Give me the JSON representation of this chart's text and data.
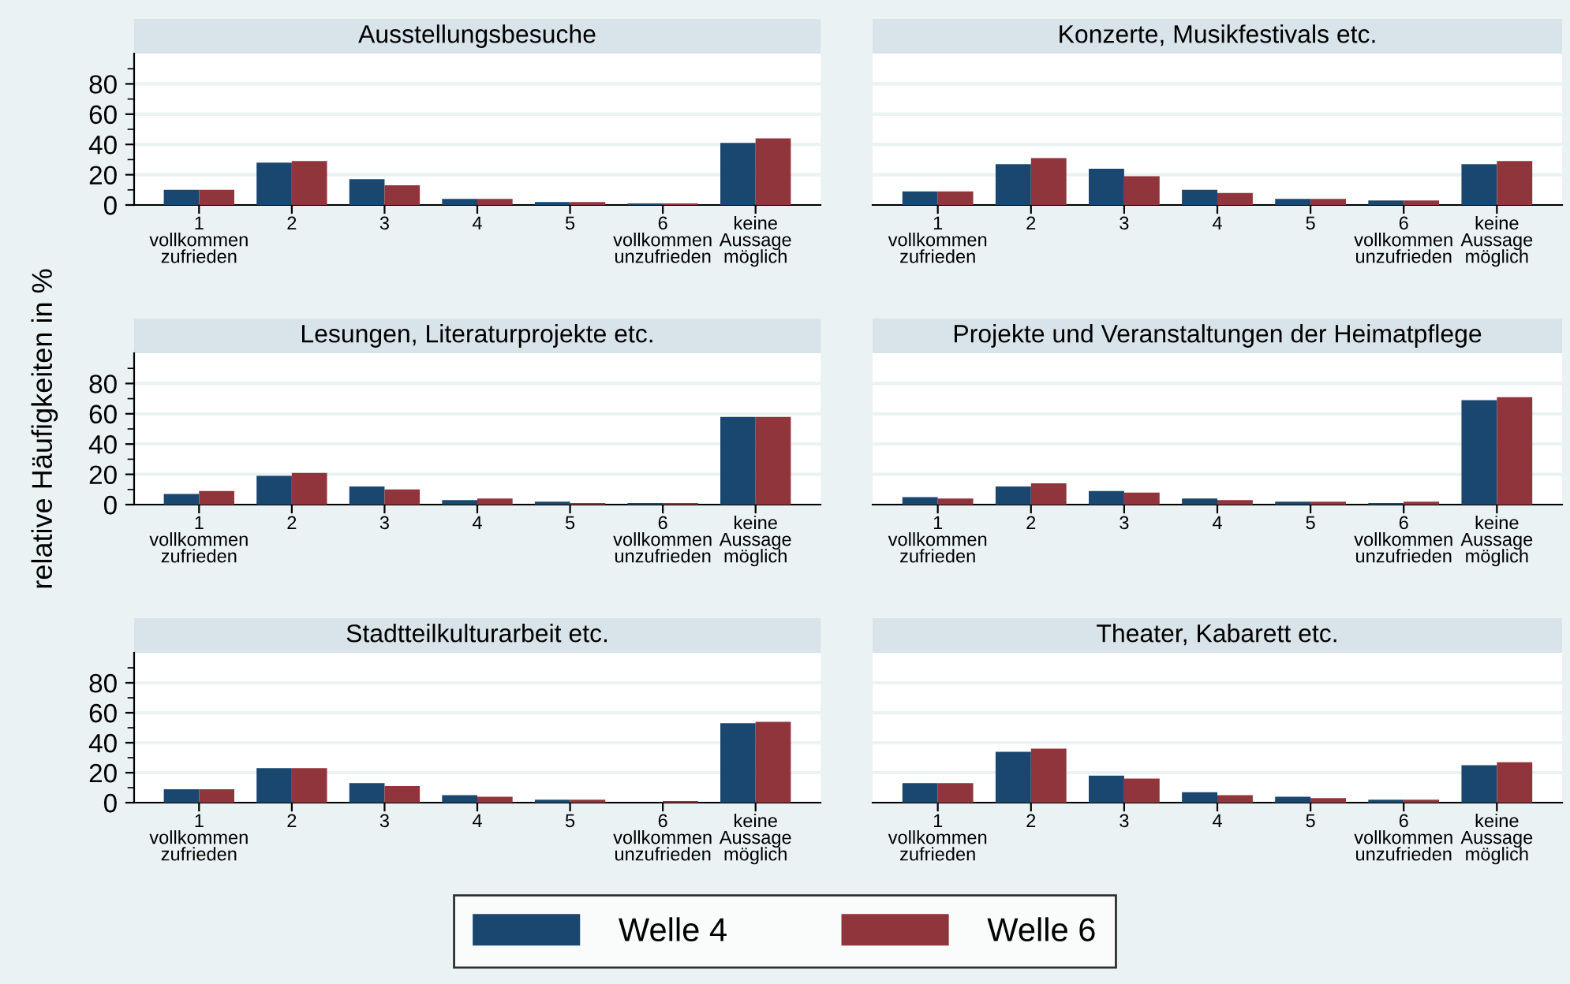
{
  "chart_data": [
    {
      "type": "bar",
      "title": "Ausstellungsbesuche",
      "categories": [
        "1\nvollkommen\nzufrieden",
        "2",
        "3",
        "4",
        "5",
        "6\nvollkommen\nunzufrieden",
        "keine\nAussage\nmöglich"
      ],
      "ylim": [
        0,
        100
      ],
      "yticks": [
        0,
        20,
        40,
        60,
        80
      ],
      "grid": "y",
      "legend": "bottom",
      "series": [
        {
          "name": "Welle 4",
          "color": "#1a476f",
          "values": [
            10,
            28,
            17,
            4,
            2,
            1,
            41
          ]
        },
        {
          "name": "Welle 6",
          "color": "#90353b",
          "values": [
            10,
            29,
            13,
            4,
            2,
            1,
            44
          ]
        }
      ]
    },
    {
      "type": "bar",
      "title": "Konzerte, Musikfestivals etc.",
      "categories": [
        "1\nvollkommen\nzufrieden",
        "2",
        "3",
        "4",
        "5",
        "6\nvollkommen\nunzufrieden",
        "keine\nAussage\nmöglich"
      ],
      "ylim": [
        0,
        100
      ],
      "yticks": [
        0,
        20,
        40,
        60,
        80
      ],
      "grid": "y",
      "tick_labels": "x",
      "series": [
        {
          "color": "#1a476f",
          "values": [
            9,
            27,
            24,
            10,
            4,
            3,
            27
          ]
        },
        {
          "color": "#90353b",
          "values": [
            9,
            31,
            19,
            8,
            4,
            3,
            29
          ]
        }
      ]
    },
    {
      "type": "bar",
      "title": "Lesungen, Literaturprojekte etc.",
      "ylabel": "relative Häufigkeiten in %",
      "categories": [
        "1\nvollkommen\nzufrieden",
        "2",
        "3",
        "4",
        "5",
        "6\nvollkommen\nunzufrieden",
        "keine\nAussage\nmöglich"
      ],
      "ylim": [
        0,
        100
      ],
      "yticks": [
        0,
        20,
        40,
        60,
        80
      ],
      "grid": "y",
      "series": [
        {
          "color": "#1a476f",
          "values": [
            7,
            19,
            12,
            3,
            2,
            1,
            58
          ]
        },
        {
          "color": "#90353b",
          "values": [
            9,
            21,
            10,
            4,
            1,
            1,
            58
          ]
        }
      ]
    },
    {
      "type": "bar",
      "title": "Projekte und Veranstaltungen der Heimatpflege",
      "categories": [
        "1\nvollkommen\nzufrieden",
        "2",
        "3",
        "4",
        "5",
        "6\nvollkommen\nunzufrieden",
        "keine\nAussage\nmöglich"
      ],
      "ylim": [
        0,
        100
      ],
      "yticks": [
        0,
        20,
        40,
        60,
        80
      ],
      "grid": "y",
      "tick_labels": "x",
      "series": [
        {
          "color": "#1a476f",
          "values": [
            5,
            12,
            9,
            4,
            2,
            1,
            69
          ]
        },
        {
          "color": "#90353b",
          "values": [
            4,
            14,
            8,
            3,
            2,
            2,
            71
          ]
        }
      ]
    },
    {
      "type": "bar",
      "title": "Stadtteilkulturarbeit etc.",
      "categories": [
        "1\nvollkommen\nzufrieden",
        "2",
        "3",
        "4",
        "5",
        "6\nvollkommen\nunzufrieden",
        "keine\nAussage\nmöglich"
      ],
      "ylim": [
        0,
        100
      ],
      "yticks": [
        0,
        20,
        40,
        60,
        80
      ],
      "grid": "y",
      "series": [
        {
          "color": "#1a476f",
          "values": [
            9,
            23,
            13,
            5,
            2,
            0,
            53
          ]
        },
        {
          "color": "#90353b",
          "values": [
            9,
            23,
            11,
            4,
            2,
            1,
            54
          ]
        }
      ]
    },
    {
      "type": "bar",
      "title": "Theater, Kabarett etc.",
      "categories": [
        "1\nvollkommen\nzufrieden",
        "2",
        "3",
        "4",
        "5",
        "6\nvollkommen\nunzufrieden",
        "keine\nAussage\nmöglich"
      ],
      "ylim": [
        0,
        100
      ],
      "yticks": [
        0,
        20,
        40,
        60,
        80
      ],
      "grid": "y",
      "tick_labels": "x",
      "series": [
        {
          "color": "#1a476f",
          "values": [
            13,
            34,
            18,
            7,
            4,
            2,
            25
          ]
        },
        {
          "color": "#90353b",
          "values": [
            13,
            36,
            16,
            5,
            3,
            2,
            27
          ]
        }
      ]
    }
  ]
}
